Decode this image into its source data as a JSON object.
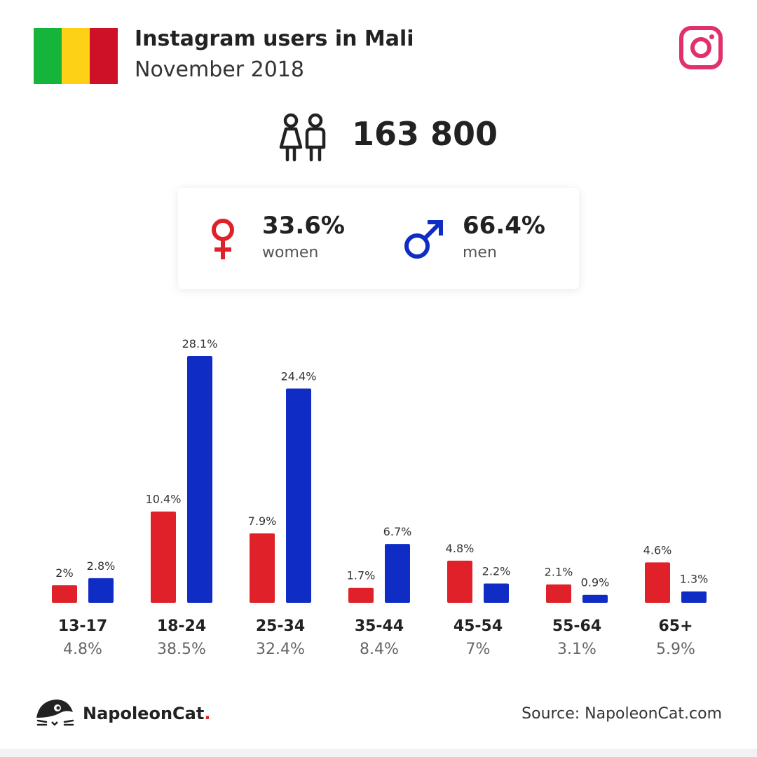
{
  "header": {
    "title": "Instagram users in Mali",
    "subtitle": "November 2018",
    "flag_colors": [
      "#14b53a",
      "#fcd116",
      "#ce1126"
    ],
    "social_icon": "instagram-icon",
    "social_color": "#e1306c"
  },
  "summary": {
    "total_users": "163 800",
    "icon": "people-icon"
  },
  "gender": {
    "women": {
      "pct": "33.6%",
      "label": "women",
      "icon": "female-icon",
      "color": "#e0212a"
    },
    "men": {
      "pct": "66.4%",
      "label": "men",
      "icon": "male-icon",
      "color": "#0f2cc4"
    }
  },
  "chart_data": {
    "type": "bar",
    "categories": [
      "13-17",
      "18-24",
      "25-34",
      "35-44",
      "45-54",
      "55-64",
      "65+"
    ],
    "category_totals": [
      "4.8%",
      "38.5%",
      "32.4%",
      "8.4%",
      "7%",
      "3.1%",
      "5.9%"
    ],
    "series": [
      {
        "values": [
          2,
          10.4,
          7.9,
          1.7,
          4.8,
          2.1,
          4.6
        ],
        "labels": [
          "2%",
          "10.4%",
          "7.9%",
          "1.7%",
          "4.8%",
          "2.1%",
          "4.6%"
        ],
        "color": "#e0212a"
      },
      {
        "values": [
          2.8,
          28.1,
          24.4,
          6.7,
          2.2,
          0.9,
          1.3
        ],
        "labels": [
          "2.8%",
          "28.1%",
          "24.4%",
          "6.7%",
          "2.2%",
          "0.9%",
          "1.3%"
        ],
        "color": "#0f2cc4"
      }
    ],
    "ylim": [
      0,
      28.1
    ],
    "grid": false,
    "legend": "none"
  },
  "footer": {
    "brand_name": "NapoleonCat",
    "brand_dot": ".",
    "brand_icon": "napoleoncat-logo-icon",
    "source": "Source: NapoleonCat.com"
  }
}
